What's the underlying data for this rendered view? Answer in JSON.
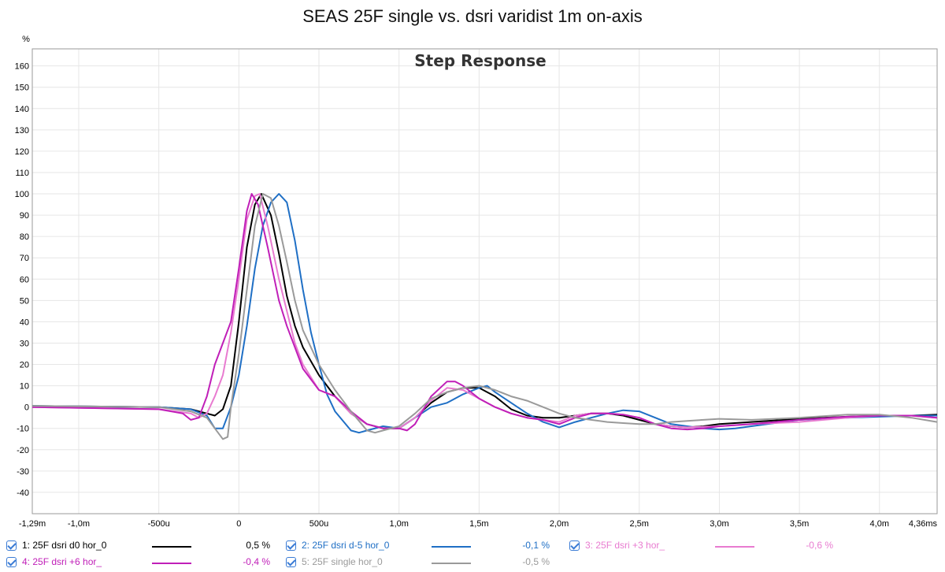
{
  "window": {
    "title": "SEAS 25F single vs. dsri varidist 1m on-axis"
  },
  "chart_data": {
    "type": "line",
    "title": "Step Response",
    "ylabel": "%",
    "xlabel": "",
    "xlim": [
      -1.29,
      4.36
    ],
    "ylim": [
      -50,
      168
    ],
    "grid": true,
    "x_ticks": [
      {
        "value": -1.29,
        "label": "-1,29m"
      },
      {
        "value": -1.0,
        "label": "-1,0m"
      },
      {
        "value": -0.5,
        "label": "-500u"
      },
      {
        "value": 0,
        "label": "0"
      },
      {
        "value": 0.5,
        "label": "500u"
      },
      {
        "value": 1.0,
        "label": "1,0m"
      },
      {
        "value": 1.5,
        "label": "1,5m"
      },
      {
        "value": 2.0,
        "label": "2,0m"
      },
      {
        "value": 2.5,
        "label": "2,5m"
      },
      {
        "value": 3.0,
        "label": "3,0m"
      },
      {
        "value": 3.5,
        "label": "3,5m"
      },
      {
        "value": 4.0,
        "label": "4,0m"
      },
      {
        "value": 4.36,
        "label": "4,36ms"
      }
    ],
    "y_ticks": [
      160,
      150,
      140,
      130,
      120,
      110,
      100,
      90,
      80,
      70,
      60,
      50,
      40,
      30,
      20,
      10,
      0,
      -10,
      -20,
      -30,
      -40
    ],
    "series": [
      {
        "name": "1: 25F dsri d0 hor_0",
        "color": "#000000",
        "value_label": "0,5 %",
        "points": [
          [
            -1.29,
            0.5
          ],
          [
            -0.5,
            0
          ],
          [
            -0.3,
            -1
          ],
          [
            -0.2,
            -3
          ],
          [
            -0.15,
            -4
          ],
          [
            -0.1,
            -1
          ],
          [
            -0.05,
            10
          ],
          [
            0,
            40
          ],
          [
            0.05,
            75
          ],
          [
            0.1,
            95
          ],
          [
            0.14,
            100
          ],
          [
            0.2,
            90
          ],
          [
            0.25,
            72
          ],
          [
            0.3,
            52
          ],
          [
            0.35,
            38
          ],
          [
            0.4,
            28
          ],
          [
            0.5,
            15
          ],
          [
            0.6,
            5
          ],
          [
            0.7,
            -3
          ],
          [
            0.8,
            -8
          ],
          [
            0.9,
            -10
          ],
          [
            1.0,
            -10
          ],
          [
            1.1,
            -5
          ],
          [
            1.2,
            2
          ],
          [
            1.3,
            7
          ],
          [
            1.4,
            9
          ],
          [
            1.5,
            9
          ],
          [
            1.6,
            5
          ],
          [
            1.7,
            -1
          ],
          [
            1.8,
            -4
          ],
          [
            1.9,
            -5
          ],
          [
            2.0,
            -5
          ],
          [
            2.1,
            -4
          ],
          [
            2.2,
            -3
          ],
          [
            2.3,
            -3
          ],
          [
            2.4,
            -4
          ],
          [
            2.5,
            -6
          ],
          [
            2.6,
            -8
          ],
          [
            2.7,
            -9
          ],
          [
            2.8,
            -9.5
          ],
          [
            2.9,
            -9
          ],
          [
            3.0,
            -8
          ],
          [
            3.2,
            -7
          ],
          [
            3.5,
            -5.5
          ],
          [
            3.8,
            -4.5
          ],
          [
            4.0,
            -4
          ],
          [
            4.2,
            -4
          ],
          [
            4.36,
            -3.5
          ]
        ]
      },
      {
        "name": "2: 25F dsri d-5 hor_0",
        "color": "#1f6fc5",
        "value_label": "-0,1 %",
        "points": [
          [
            -1.29,
            0.5
          ],
          [
            -0.5,
            0
          ],
          [
            -0.3,
            -1
          ],
          [
            -0.2,
            -4
          ],
          [
            -0.15,
            -10
          ],
          [
            -0.1,
            -10
          ],
          [
            -0.05,
            0
          ],
          [
            0,
            15
          ],
          [
            0.05,
            38
          ],
          [
            0.1,
            65
          ],
          [
            0.15,
            85
          ],
          [
            0.2,
            96
          ],
          [
            0.25,
            100
          ],
          [
            0.3,
            96
          ],
          [
            0.35,
            78
          ],
          [
            0.4,
            55
          ],
          [
            0.45,
            35
          ],
          [
            0.5,
            20
          ],
          [
            0.55,
            6
          ],
          [
            0.6,
            -2
          ],
          [
            0.7,
            -11
          ],
          [
            0.75,
            -12
          ],
          [
            0.8,
            -11
          ],
          [
            0.9,
            -9
          ],
          [
            1.0,
            -10
          ],
          [
            1.1,
            -5
          ],
          [
            1.2,
            0
          ],
          [
            1.3,
            2
          ],
          [
            1.4,
            6
          ],
          [
            1.5,
            9
          ],
          [
            1.55,
            10
          ],
          [
            1.6,
            7
          ],
          [
            1.7,
            2
          ],
          [
            1.8,
            -3
          ],
          [
            1.9,
            -7
          ],
          [
            2.0,
            -9.5
          ],
          [
            2.1,
            -7
          ],
          [
            2.2,
            -5
          ],
          [
            2.3,
            -3
          ],
          [
            2.4,
            -1.5
          ],
          [
            2.5,
            -2
          ],
          [
            2.6,
            -5
          ],
          [
            2.7,
            -8
          ],
          [
            2.8,
            -9
          ],
          [
            2.9,
            -10
          ],
          [
            3.0,
            -10.5
          ],
          [
            3.1,
            -10
          ],
          [
            3.3,
            -8
          ],
          [
            3.5,
            -6
          ],
          [
            3.8,
            -5
          ],
          [
            4.0,
            -4.5
          ],
          [
            4.2,
            -4
          ],
          [
            4.36,
            -4
          ]
        ]
      },
      {
        "name": "3: 25F dsri +3 hor_",
        "color": "#e87bd0",
        "value_label": "-0,6 %",
        "points": [
          [
            -1.29,
            0
          ],
          [
            -0.5,
            -1
          ],
          [
            -0.3,
            -3
          ],
          [
            -0.25,
            -5
          ],
          [
            -0.2,
            -3
          ],
          [
            -0.15,
            5
          ],
          [
            -0.1,
            15
          ],
          [
            -0.05,
            35
          ],
          [
            0,
            60
          ],
          [
            0.05,
            88
          ],
          [
            0.1,
            99
          ],
          [
            0.13,
            100
          ],
          [
            0.18,
            85
          ],
          [
            0.25,
            60
          ],
          [
            0.3,
            45
          ],
          [
            0.35,
            30
          ],
          [
            0.4,
            20
          ],
          [
            0.5,
            8
          ],
          [
            0.6,
            5
          ],
          [
            0.7,
            -3
          ],
          [
            0.8,
            -8
          ],
          [
            0.9,
            -10
          ],
          [
            1.0,
            -10
          ],
          [
            1.1,
            -5
          ],
          [
            1.2,
            3
          ],
          [
            1.3,
            9
          ],
          [
            1.4,
            8
          ],
          [
            1.5,
            4
          ],
          [
            1.6,
            0
          ],
          [
            1.7,
            -3
          ],
          [
            1.8,
            -5
          ],
          [
            1.9,
            -6
          ],
          [
            2.0,
            -7
          ],
          [
            2.1,
            -4
          ],
          [
            2.2,
            -3
          ],
          [
            2.3,
            -3
          ],
          [
            2.4,
            -3.5
          ],
          [
            2.5,
            -5
          ],
          [
            2.6,
            -8
          ],
          [
            2.7,
            -9
          ],
          [
            2.8,
            -9.5
          ],
          [
            3.0,
            -9
          ],
          [
            3.2,
            -8
          ],
          [
            3.5,
            -7
          ],
          [
            3.8,
            -5
          ],
          [
            4.0,
            -4
          ],
          [
            4.2,
            -4
          ],
          [
            4.36,
            -5
          ]
        ]
      },
      {
        "name": "4: 25F dsri +6 hor_",
        "color": "#c01fb8",
        "value_label": "-0,4 %",
        "points": [
          [
            -1.29,
            0
          ],
          [
            -0.5,
            -1
          ],
          [
            -0.35,
            -3
          ],
          [
            -0.3,
            -6
          ],
          [
            -0.25,
            -5
          ],
          [
            -0.2,
            5
          ],
          [
            -0.15,
            20
          ],
          [
            -0.1,
            30
          ],
          [
            -0.05,
            40
          ],
          [
            0,
            65
          ],
          [
            0.05,
            92
          ],
          [
            0.08,
            100
          ],
          [
            0.12,
            95
          ],
          [
            0.18,
            75
          ],
          [
            0.25,
            50
          ],
          [
            0.3,
            38
          ],
          [
            0.35,
            28
          ],
          [
            0.4,
            18
          ],
          [
            0.5,
            8
          ],
          [
            0.6,
            5
          ],
          [
            0.7,
            -2
          ],
          [
            0.8,
            -8
          ],
          [
            0.9,
            -10
          ],
          [
            1.0,
            -10
          ],
          [
            1.05,
            -11
          ],
          [
            1.1,
            -8
          ],
          [
            1.2,
            5
          ],
          [
            1.3,
            12
          ],
          [
            1.35,
            12
          ],
          [
            1.4,
            10
          ],
          [
            1.5,
            4
          ],
          [
            1.6,
            0
          ],
          [
            1.7,
            -3
          ],
          [
            1.8,
            -5
          ],
          [
            1.9,
            -6
          ],
          [
            2.0,
            -8
          ],
          [
            2.1,
            -5
          ],
          [
            2.2,
            -3
          ],
          [
            2.3,
            -3
          ],
          [
            2.4,
            -3.5
          ],
          [
            2.5,
            -5
          ],
          [
            2.6,
            -8
          ],
          [
            2.7,
            -10
          ],
          [
            2.8,
            -10.5
          ],
          [
            2.9,
            -10
          ],
          [
            3.0,
            -9
          ],
          [
            3.2,
            -8
          ],
          [
            3.5,
            -6
          ],
          [
            3.8,
            -4.5
          ],
          [
            4.0,
            -4
          ],
          [
            4.2,
            -4
          ],
          [
            4.36,
            -5
          ]
        ]
      },
      {
        "name": "5: 25F single hor_0",
        "color": "#9a9a9a",
        "value_label": "-0,5 %",
        "points": [
          [
            -1.29,
            0.5
          ],
          [
            -0.5,
            0
          ],
          [
            -0.3,
            -2
          ],
          [
            -0.2,
            -5
          ],
          [
            -0.15,
            -10
          ],
          [
            -0.1,
            -15
          ],
          [
            -0.07,
            -14
          ],
          [
            -0.05,
            0
          ],
          [
            0,
            25
          ],
          [
            0.05,
            55
          ],
          [
            0.1,
            85
          ],
          [
            0.15,
            100
          ],
          [
            0.2,
            98
          ],
          [
            0.25,
            85
          ],
          [
            0.3,
            68
          ],
          [
            0.35,
            50
          ],
          [
            0.4,
            36
          ],
          [
            0.5,
            20
          ],
          [
            0.6,
            8
          ],
          [
            0.7,
            -2
          ],
          [
            0.8,
            -11
          ],
          [
            0.85,
            -12
          ],
          [
            0.9,
            -11
          ],
          [
            1.0,
            -9
          ],
          [
            1.1,
            -3
          ],
          [
            1.2,
            4
          ],
          [
            1.3,
            7
          ],
          [
            1.4,
            9
          ],
          [
            1.5,
            10
          ],
          [
            1.6,
            8
          ],
          [
            1.7,
            5
          ],
          [
            1.8,
            3
          ],
          [
            1.9,
            0
          ],
          [
            2.0,
            -3
          ],
          [
            2.1,
            -5
          ],
          [
            2.2,
            -6
          ],
          [
            2.3,
            -7
          ],
          [
            2.4,
            -7.5
          ],
          [
            2.5,
            -8
          ],
          [
            2.6,
            -8
          ],
          [
            2.7,
            -7
          ],
          [
            2.8,
            -6.5
          ],
          [
            2.9,
            -6
          ],
          [
            3.0,
            -5.5
          ],
          [
            3.2,
            -6
          ],
          [
            3.5,
            -5
          ],
          [
            3.8,
            -3.5
          ],
          [
            4.0,
            -3.5
          ],
          [
            4.2,
            -5
          ],
          [
            4.36,
            -7
          ]
        ]
      }
    ]
  }
}
